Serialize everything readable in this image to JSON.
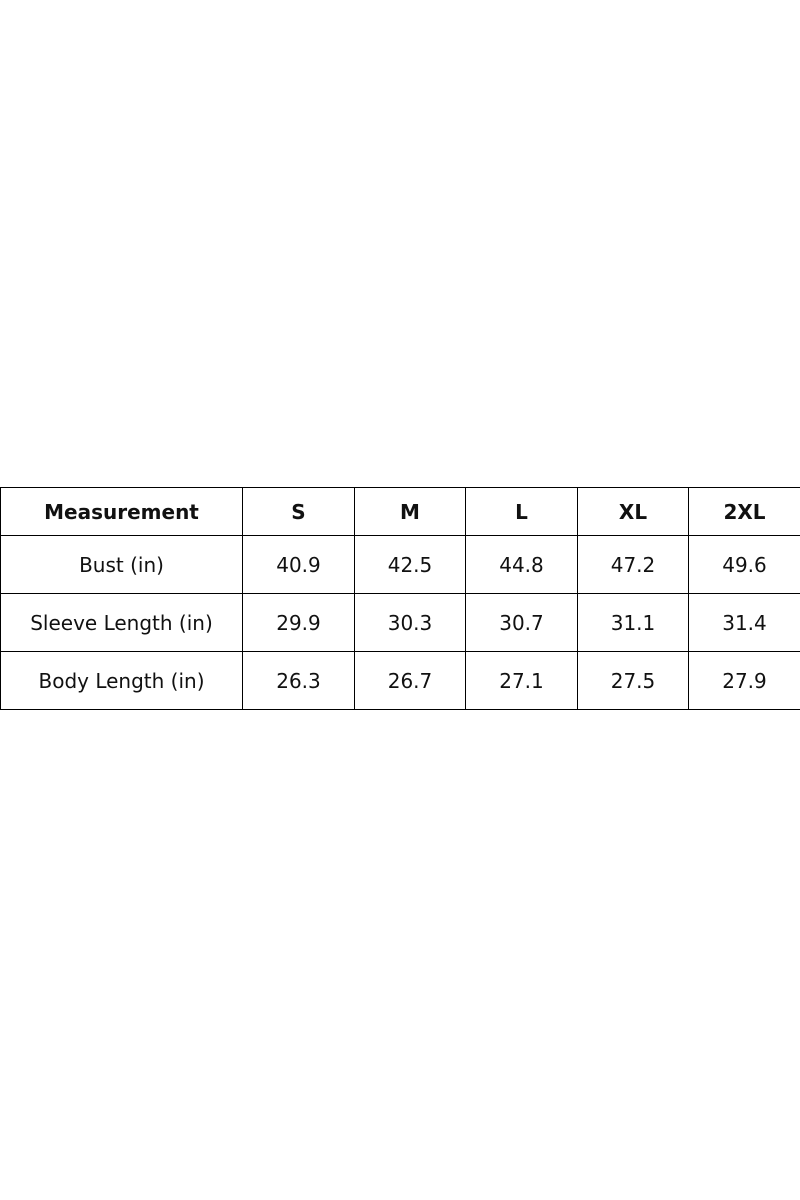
{
  "table": {
    "header": [
      "Measurement",
      "S",
      "M",
      "L",
      "XL",
      "2XL"
    ],
    "rows": [
      [
        "Bust (in)",
        "40.9",
        "42.5",
        "44.8",
        "47.2",
        "49.6"
      ],
      [
        "Sleeve Length (in)",
        "29.9",
        "30.3",
        "30.7",
        "31.1",
        "31.4"
      ],
      [
        "Body Length (in)",
        "26.3",
        "26.7",
        "27.1",
        "27.5",
        "27.9"
      ]
    ]
  }
}
